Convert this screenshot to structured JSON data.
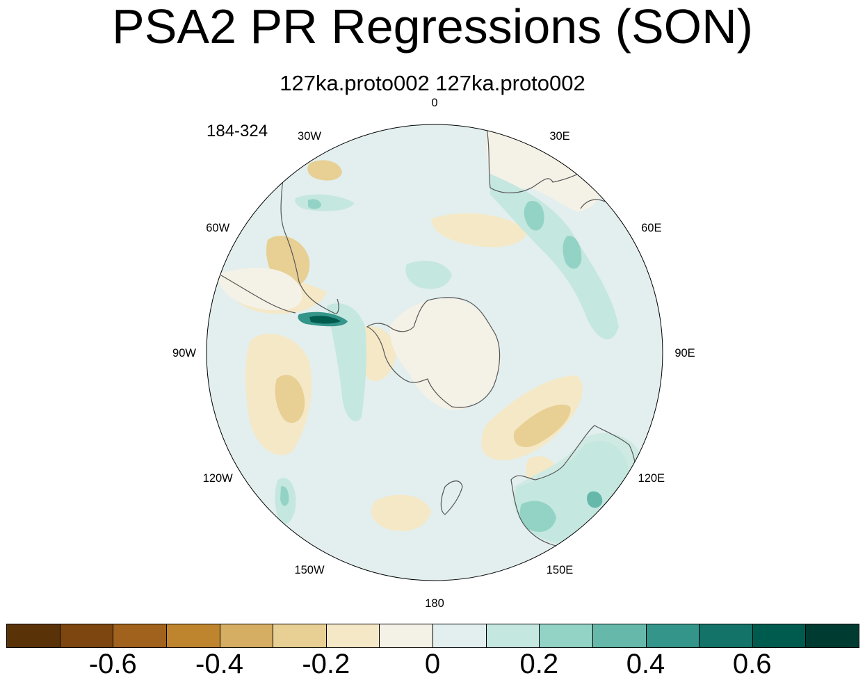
{
  "title": "PSA2 PR Regressions (SON)",
  "subtitle": "127ka.proto002  127ka.proto002",
  "period": "184-324",
  "map": {
    "projection": "South Polar Stereographic",
    "ocean_color": "#e2efee",
    "coast_color": "#555555",
    "longitude_labels": [
      "0",
      "30E",
      "60E",
      "90E",
      "120E",
      "150E",
      "180",
      "150W",
      "120W",
      "90W",
      "60W",
      "30W"
    ],
    "longitude_values": [
      0,
      30,
      60,
      90,
      120,
      150,
      180,
      -150,
      -120,
      -90,
      -60,
      -30
    ]
  },
  "colorbar": {
    "colors": [
      "#5a3208",
      "#7d4610",
      "#a0621c",
      "#bf842e",
      "#d5ad63",
      "#e8cf94",
      "#f5e8c7",
      "#f4f1e6",
      "#e2efee",
      "#c4e7df",
      "#92d3c6",
      "#66b9aa",
      "#34958a",
      "#137369",
      "#005b4f",
      "#003b32"
    ],
    "tick_labels": [
      "-0.6",
      "-0.4",
      "-0.2",
      "0",
      "0.2",
      "0.4",
      "0.6"
    ],
    "tick_values": [
      -0.6,
      -0.4,
      -0.2,
      0,
      0.2,
      0.4,
      0.6
    ]
  }
}
